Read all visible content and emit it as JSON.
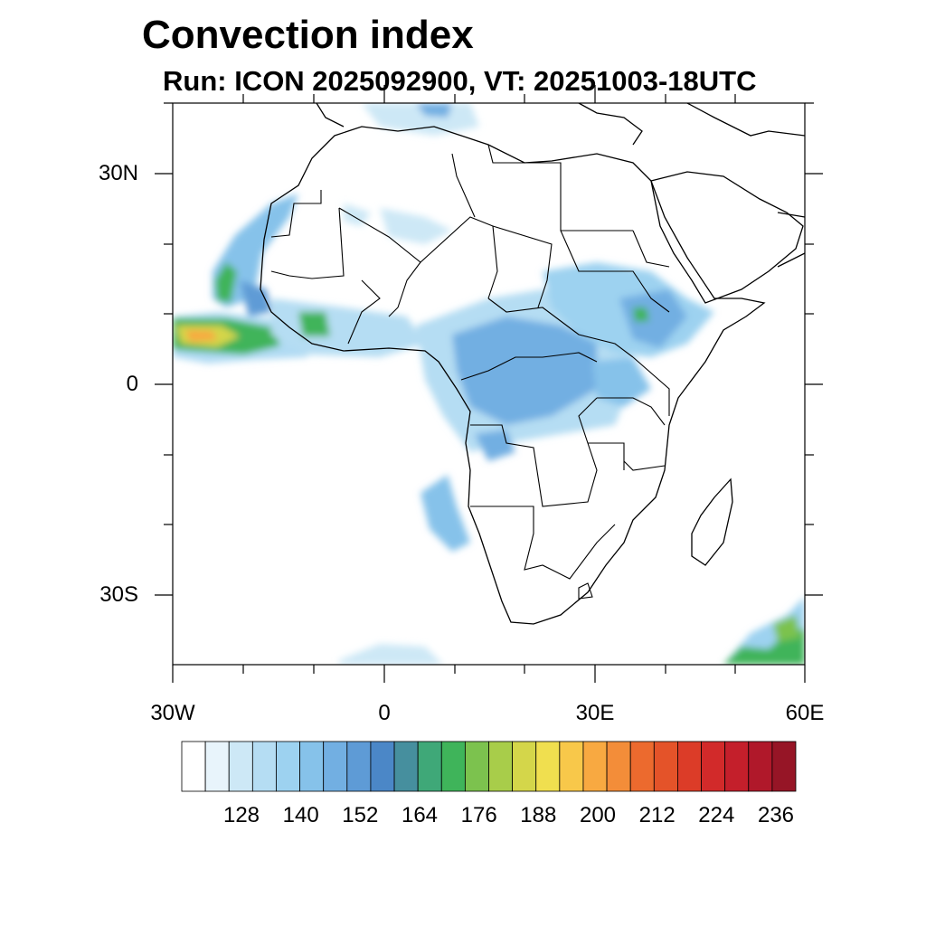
{
  "title": "Convection index",
  "subtitle": "Run: ICON 2025092900,  VT: 20251003-18UTC",
  "map": {
    "region": "Africa",
    "lon_range": [
      -30,
      60
    ],
    "lat_range": [
      -40,
      40
    ],
    "x_tick_labels": [
      "30W",
      "0",
      "30E",
      "60E"
    ],
    "y_tick_labels": [
      "30N",
      "0",
      "30S"
    ]
  },
  "colorbar": {
    "labels": [
      "128",
      "140",
      "152",
      "164",
      "176",
      "188",
      "200",
      "212",
      "224",
      "236"
    ],
    "colors": [
      "#ffffff",
      "#e8f4fb",
      "#cde8f6",
      "#b5ddf3",
      "#9dd2f0",
      "#86c2ea",
      "#72afe2",
      "#5e9bd6",
      "#4b87c7",
      "#468f9e",
      "#3fa878",
      "#3fb45a",
      "#7cc24e",
      "#a8cd4a",
      "#d4d64a",
      "#f0df4f",
      "#f8c84a",
      "#f8a941",
      "#f38d39",
      "#ec6a2e",
      "#e45329",
      "#dc3c28",
      "#d22a2a",
      "#c41f2b",
      "#b0182a",
      "#961526"
    ]
  }
}
